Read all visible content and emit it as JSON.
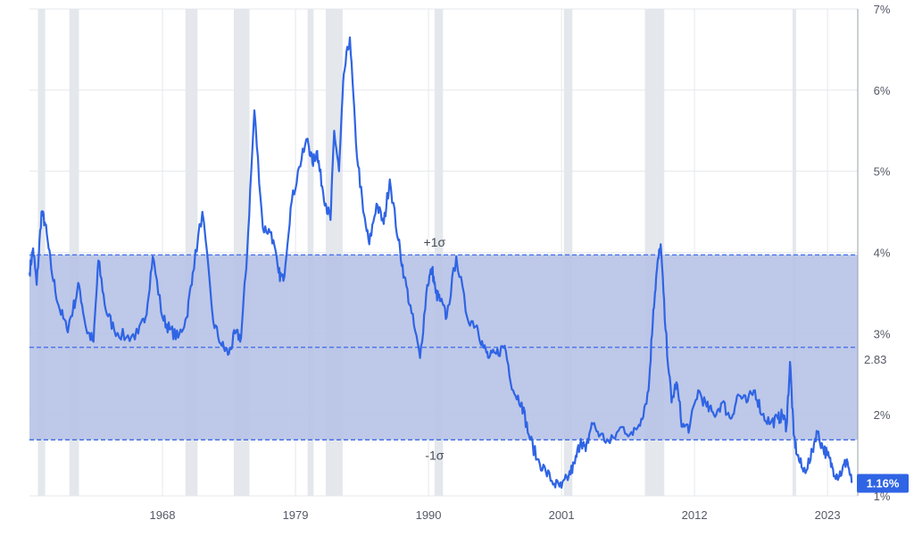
{
  "chart_data": {
    "type": "line",
    "title": "",
    "xlabel": "",
    "ylabel": "",
    "xlim": [
      1957,
      2025.5
    ],
    "ylim": [
      1,
      7
    ],
    "x_ticks": [
      "1968",
      "1979",
      "1990",
      "2001",
      "2012",
      "2023"
    ],
    "y_ticks": [
      "1%",
      "2%",
      "3%",
      "4%",
      "5%",
      "6%",
      "7%"
    ],
    "grid": true,
    "mean": {
      "value": 2.83,
      "label": "2.83"
    },
    "upper_band": {
      "value": 3.97,
      "label": "+1σ"
    },
    "lower_band": {
      "value": 1.69,
      "label": "-1σ"
    },
    "current_value": {
      "value": 1.16,
      "label": "1.16%"
    },
    "recessions": [
      [
        1957.7,
        1958.3
      ],
      [
        1960.3,
        1961.1
      ],
      [
        1969.9,
        1970.9
      ],
      [
        1973.9,
        1975.2
      ],
      [
        1980.0,
        1980.5
      ],
      [
        1981.5,
        1982.9
      ],
      [
        1990.5,
        1991.2
      ],
      [
        2001.2,
        2001.9
      ],
      [
        2007.9,
        2009.5
      ],
      [
        2020.1,
        2020.4
      ]
    ],
    "series": [
      {
        "x": [
          1957.0,
          1957.3,
          1957.6,
          1958.0,
          1958.3,
          1958.8,
          1959.4,
          1960.1,
          1960.6,
          1961.1,
          1961.7,
          1962.3,
          1962.7,
          1963.3,
          1964.0,
          1965.0,
          1966.0,
          1966.6,
          1967.2,
          1968.0,
          1968.6,
          1969.3,
          1970.0,
          1970.5,
          1971.3,
          1972.2,
          1972.9,
          1973.5,
          1974.0,
          1974.5,
          1975.0,
          1975.6,
          1976.3,
          1977.0,
          1977.6,
          1978.0,
          1978.6,
          1979.3,
          1980.0,
          1980.4,
          1980.8,
          1981.0,
          1981.5,
          1981.9,
          1982.2,
          1982.6,
          1983.0,
          1983.5,
          1984.0,
          1984.6,
          1985.1,
          1985.7,
          1986.3,
          1986.8,
          1987.5,
          1988.0,
          1988.6,
          1989.3,
          1989.9,
          1990.3,
          1990.6,
          1991.0,
          1991.5,
          1992.3,
          1993.2,
          1994.0,
          1994.5,
          1995.0,
          1995.6,
          1996.3,
          1997.0,
          1997.7,
          1998.3,
          1999.0,
          1999.7,
          2000.4,
          2001.0,
          2001.6,
          2002.1,
          2002.6,
          2003.0,
          2003.5,
          2004.2,
          2005.0,
          2006.0,
          2006.9,
          2007.6,
          2008.2,
          2008.6,
          2008.9,
          2009.2,
          2009.6,
          2010.1,
          2010.5,
          2011.0,
          2011.6,
          2012.3,
          2013.0,
          2013.6,
          2014.3,
          2015.0,
          2015.6,
          2016.3,
          2017.0,
          2017.6,
          2018.3,
          2018.9,
          2019.3,
          2019.6,
          2019.9,
          2020.2,
          2020.5,
          2021.0,
          2021.6,
          2022.1,
          2022.6,
          2023.0,
          2023.4,
          2023.8,
          2024.2,
          2024.6,
          2025.0
        ],
        "y": [
          3.75,
          4.05,
          3.6,
          4.5,
          4.35,
          3.8,
          3.35,
          3.05,
          3.3,
          3.6,
          3.05,
          2.9,
          3.9,
          3.3,
          3.05,
          2.95,
          3.0,
          3.2,
          3.95,
          3.2,
          3.05,
          2.95,
          3.2,
          3.75,
          4.5,
          3.15,
          2.85,
          2.75,
          3.0,
          2.95,
          4.0,
          5.75,
          4.3,
          4.25,
          3.75,
          3.65,
          4.55,
          5.05,
          5.4,
          5.1,
          5.25,
          5.0,
          4.6,
          4.4,
          5.5,
          5.0,
          6.2,
          6.65,
          5.35,
          4.5,
          4.1,
          4.6,
          4.35,
          4.9,
          4.15,
          3.7,
          3.25,
          2.7,
          3.6,
          3.8,
          3.5,
          3.4,
          3.2,
          3.95,
          3.2,
          3.1,
          2.85,
          2.7,
          2.75,
          2.85,
          2.3,
          2.15,
          1.75,
          1.45,
          1.3,
          1.15,
          1.1,
          1.25,
          1.4,
          1.7,
          1.55,
          1.9,
          1.75,
          1.65,
          1.85,
          1.75,
          1.95,
          2.3,
          3.3,
          3.8,
          4.1,
          3.05,
          2.15,
          2.4,
          1.85,
          1.85,
          2.3,
          2.1,
          2.0,
          2.15,
          1.95,
          2.25,
          2.15,
          2.3,
          2.0,
          1.9,
          1.95,
          2.0,
          1.85,
          2.65,
          1.75,
          1.5,
          1.3,
          1.45,
          1.8,
          1.6,
          1.5,
          1.35,
          1.25,
          1.3,
          1.45,
          1.16
        ]
      }
    ]
  }
}
